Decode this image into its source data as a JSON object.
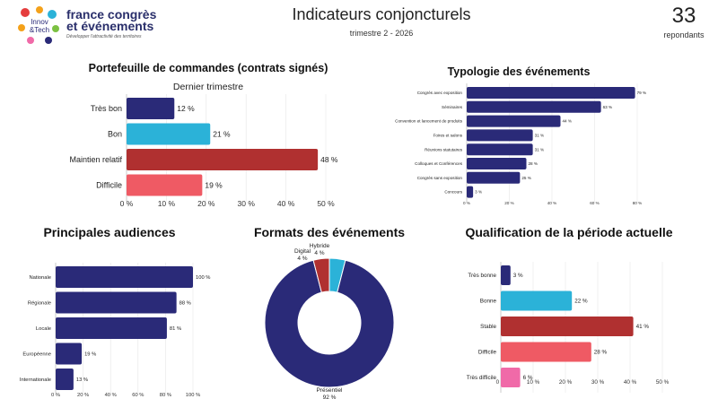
{
  "header": {
    "title": "Indicateurs conjoncturels",
    "subtitle": "trimestre 2 - 2026",
    "respondents_count": "33",
    "respondents_label": "repondants"
  },
  "logo": {
    "badge_line1": "Innov",
    "badge_line2": "&Tech",
    "brand_line1": "france congrès",
    "brand_line2": "et événements",
    "tagline": "Développer l'attractivité des territoires"
  },
  "colors": {
    "navy": "#2a2a78",
    "cyan": "#2bb2d8",
    "darkred": "#b03030",
    "salmon": "#ef5a64",
    "pink": "#f06aa8"
  },
  "chart_data": [
    {
      "id": "portefeuille",
      "type": "bar",
      "orientation": "horizontal",
      "title": "Portefeuille de commandes (contrats signés)",
      "subtitle": "Dernier trimestre",
      "categories": [
        "Très bon",
        "Bon",
        "Maintien relatif",
        "Difficile"
      ],
      "values": [
        12,
        21,
        48,
        19
      ],
      "labels": [
        "12 %",
        "21 %",
        "48 %",
        "19 %"
      ],
      "colors": [
        "#2a2a78",
        "#2bb2d8",
        "#b03030",
        "#ef5a64"
      ],
      "xlim": [
        0,
        50
      ],
      "ticks": [
        "0 %",
        "10 %",
        "20 %",
        "30 %",
        "40 %",
        "50 %"
      ]
    },
    {
      "id": "typologie",
      "type": "bar",
      "orientation": "horizontal",
      "title": "Typologie des événements",
      "categories": [
        "Congrès avec exposition",
        "Séminaires",
        "Convention et lancement de produits",
        "Foires et salons",
        "Réunions statutaires",
        "Colloques et Conférences",
        "Congrès sans exposition",
        "Concours"
      ],
      "values": [
        79,
        63,
        44,
        31,
        31,
        28,
        25,
        3
      ],
      "labels": [
        "79 %",
        "63 %",
        "44 %",
        "31 %",
        "31 %",
        "28 %",
        "25 %",
        "3 %"
      ],
      "colors": [
        "#2a2a78"
      ],
      "xlim": [
        0,
        80
      ],
      "ticks": [
        "0 %",
        "20 %",
        "40 %",
        "60 %",
        "80 %"
      ]
    },
    {
      "id": "audiences",
      "type": "bar",
      "orientation": "horizontal",
      "title": "Principales audiences",
      "categories": [
        "Nationale",
        "Régionale",
        "Locale",
        "Européenne",
        "Internationale"
      ],
      "values": [
        100,
        88,
        81,
        19,
        13
      ],
      "labels": [
        "100 %",
        "88 %",
        "81 %",
        "19 %",
        "13 %"
      ],
      "colors": [
        "#2a2a78"
      ],
      "xlim": [
        0,
        100
      ],
      "ticks": [
        "0 %",
        "20 %",
        "40 %",
        "60 %",
        "80 %",
        "100 %"
      ]
    },
    {
      "id": "formats",
      "type": "pie",
      "title": "Formats des événements",
      "categories": [
        "Présentiel",
        "Digital",
        "Hybride"
      ],
      "values": [
        92,
        4,
        4
      ],
      "labels": [
        "92 %",
        "4 %",
        "4 %"
      ],
      "colors": [
        "#2a2a78",
        "#b03030",
        "#2bb2d8"
      ]
    },
    {
      "id": "qualification",
      "type": "bar",
      "orientation": "horizontal",
      "title": "Qualification de la période actuelle",
      "categories": [
        "Très bonne",
        "Bonne",
        "Stable",
        "Difficile",
        "Très difficile"
      ],
      "values": [
        3,
        22,
        41,
        28,
        6
      ],
      "labels": [
        "3 %",
        "22 %",
        "41 %",
        "28 %",
        "6 %"
      ],
      "colors": [
        "#2a2a78",
        "#2bb2d8",
        "#b03030",
        "#ef5a64",
        "#f06aa8"
      ],
      "xlim": [
        0,
        50
      ],
      "ticks": [
        "0 %",
        "10 %",
        "20 %",
        "30 %",
        "40 %",
        "50 %"
      ]
    }
  ]
}
